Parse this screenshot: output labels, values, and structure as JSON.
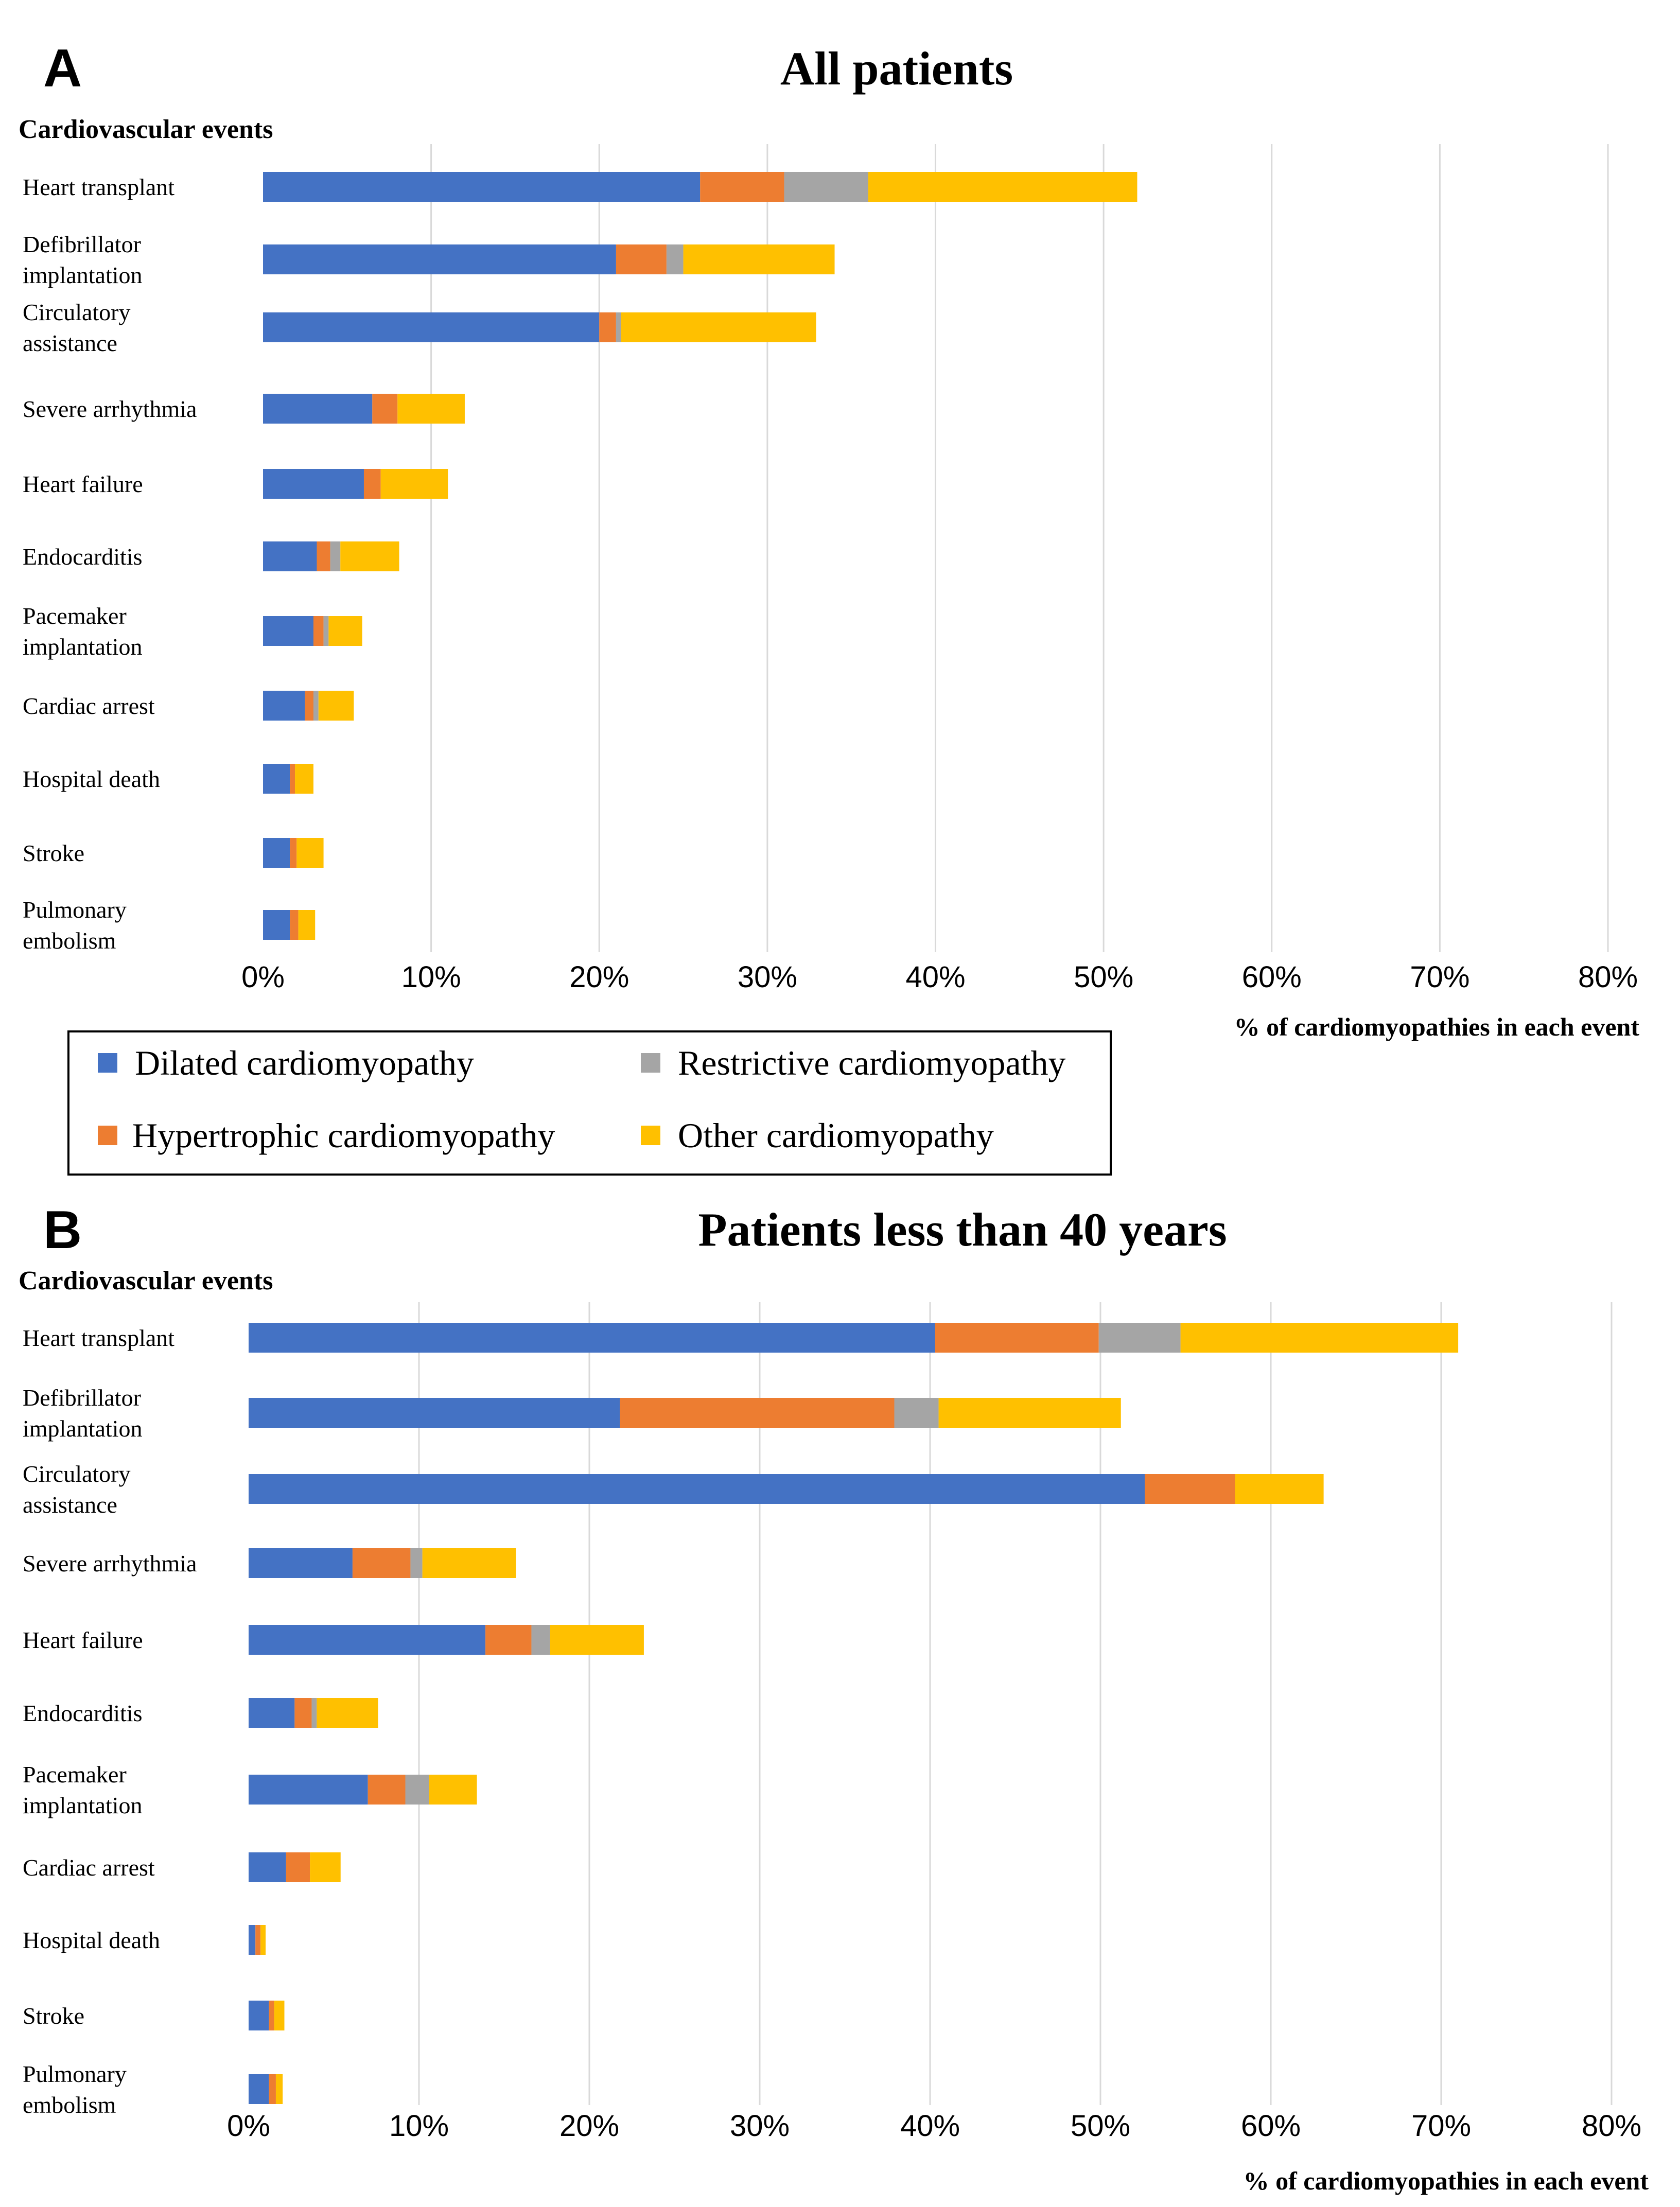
{
  "colors": {
    "dilated": "#4472C4",
    "hypertrophic": "#ED7D31",
    "restrictive": "#A5A5A5",
    "other": "#FFC000"
  },
  "legend": {
    "items": [
      {
        "key": "dilated",
        "label": "Dilated cardiomyopathy"
      },
      {
        "key": "restrictive",
        "label": "Restrictive cardiomyopathy"
      },
      {
        "key": "hypertrophic",
        "label": "Hypertrophic cardiomyopathy"
      },
      {
        "key": "other",
        "label": "Other cardiomyopathy"
      }
    ]
  },
  "chart_data": [
    {
      "type": "bar",
      "orientation": "horizontal",
      "stacked": true,
      "panel_label": "A",
      "title": "All patients",
      "ylabel": "Cardiovascular  events",
      "xlabel": "% of cardiomyopathies  in each event",
      "xlim": [
        0,
        80
      ],
      "xticks": [
        "0%",
        "10%",
        "20%",
        "30%",
        "40%",
        "50%",
        "60%",
        "70%",
        "80%"
      ],
      "grid": true,
      "categories": [
        [
          "Heart transplant"
        ],
        [
          "Defibrillator",
          "implantation"
        ],
        [
          "Circulatory",
          "assistance"
        ],
        [
          "Severe arrhythmia"
        ],
        [
          "Heart failure"
        ],
        [
          "Endocarditis"
        ],
        [
          "Pacemaker",
          "implantation"
        ],
        [
          "Cardiac arrest"
        ],
        [
          "Hospital death"
        ],
        [
          "Stroke"
        ],
        [
          "Pulmonary",
          "embolism"
        ]
      ],
      "series": [
        {
          "name": "Dilated cardiomyopathy",
          "key": "dilated",
          "values": [
            26.0,
            21.0,
            20.0,
            6.5,
            6.0,
            3.2,
            3.0,
            2.5,
            1.6,
            1.6,
            1.6
          ]
        },
        {
          "name": "Hypertrophic cardiomyopathy",
          "key": "hypertrophic",
          "values": [
            5.0,
            3.0,
            1.0,
            1.5,
            1.0,
            0.8,
            0.6,
            0.5,
            0.3,
            0.4,
            0.5
          ]
        },
        {
          "name": "Restrictive cardiomyopathy",
          "key": "restrictive",
          "values": [
            5.0,
            1.0,
            0.3,
            0.0,
            0.0,
            0.6,
            0.3,
            0.3,
            0.0,
            0.0,
            0.0
          ]
        },
        {
          "name": "Other cardiomyopathy",
          "key": "other",
          "values": [
            16.0,
            9.0,
            11.6,
            4.0,
            4.0,
            3.5,
            2.0,
            2.1,
            1.1,
            1.6,
            1.0
          ]
        }
      ]
    },
    {
      "type": "bar",
      "orientation": "horizontal",
      "stacked": true,
      "panel_label": "B",
      "title": "Patients less than 40 years",
      "ylabel": "Cardiovascular  events",
      "xlabel": "% of cardiomyopathies in each event",
      "xlim": [
        0,
        80
      ],
      "xticks": [
        "0%",
        "10%",
        "20%",
        "30%",
        "40%",
        "50%",
        "60%",
        "70%",
        "80%"
      ],
      "grid": true,
      "categories": [
        [
          "Heart transplant"
        ],
        [
          "Defibrillator",
          "implantation"
        ],
        [
          "Circulatory",
          "assistance"
        ],
        [
          "Severe arrhythmia"
        ],
        [
          "Heart failure"
        ],
        [
          "Endocarditis"
        ],
        [
          "Pacemaker",
          "implantation"
        ],
        [
          "Cardiac arrest"
        ],
        [
          "Hospital death"
        ],
        [
          "Stroke"
        ],
        [
          "Pulmonary",
          "embolism"
        ]
      ],
      "series": [
        {
          "name": "Dilated cardiomyopathy",
          "key": "dilated",
          "values": [
            40.3,
            21.8,
            52.6,
            6.1,
            13.9,
            2.7,
            7.0,
            2.2,
            0.4,
            1.2,
            1.2
          ]
        },
        {
          "name": "Hypertrophic cardiomyopathy",
          "key": "hypertrophic",
          "values": [
            9.6,
            16.1,
            5.3,
            3.4,
            2.7,
            1.0,
            2.2,
            1.4,
            0.3,
            0.3,
            0.4
          ]
        },
        {
          "name": "Restrictive cardiomyopathy",
          "key": "restrictive",
          "values": [
            4.8,
            2.6,
            0.0,
            0.7,
            1.1,
            0.3,
            1.4,
            0.0,
            0.0,
            0.0,
            0.0
          ]
        },
        {
          "name": "Other cardiomyopathy",
          "key": "other",
          "values": [
            16.3,
            10.7,
            5.2,
            5.5,
            5.5,
            3.6,
            2.8,
            1.8,
            0.3,
            0.6,
            0.4
          ]
        }
      ]
    }
  ]
}
